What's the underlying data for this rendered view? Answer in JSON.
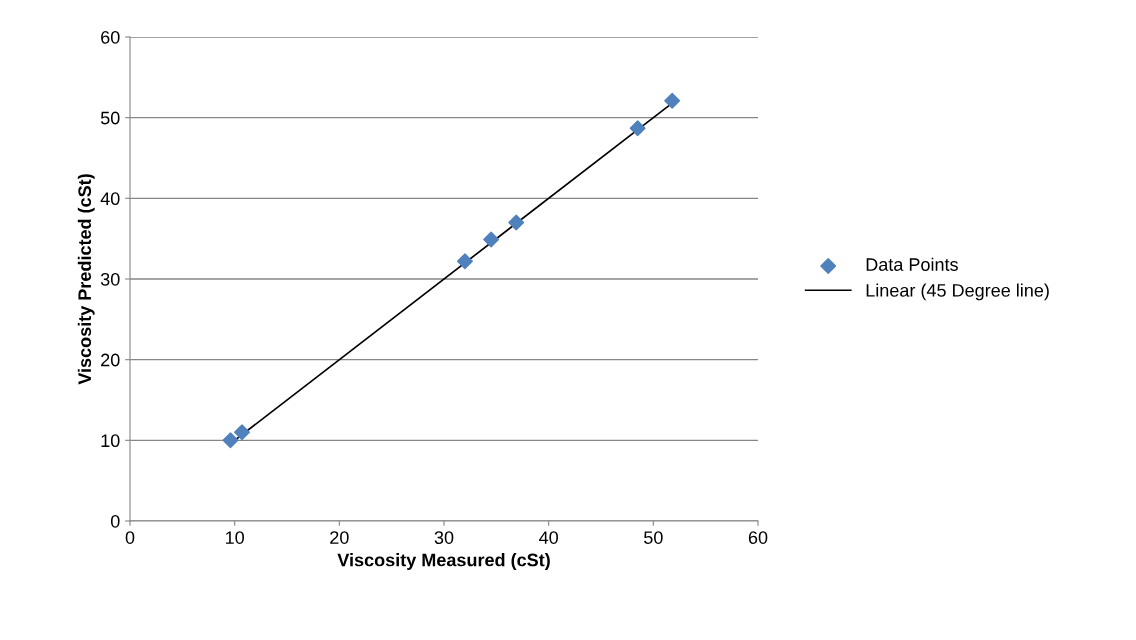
{
  "chart_data": {
    "type": "scatter",
    "xlabel": "Viscosity Measured (cSt)",
    "ylabel": "Viscosity Predicted (cSt)",
    "xlim": [
      0,
      60
    ],
    "ylim": [
      0,
      60
    ],
    "xticks": [
      0,
      10,
      20,
      30,
      40,
      50,
      60
    ],
    "yticks": [
      0,
      10,
      20,
      30,
      40,
      50,
      60
    ],
    "grid": "y",
    "legend": "right",
    "series": [
      {
        "name": "Data Points",
        "color": "#4f81bd",
        "marker": "diamond",
        "x": [
          9.6,
          10.7,
          32.0,
          34.5,
          36.9,
          48.5,
          51.8
        ],
        "values": [
          10.0,
          11.0,
          32.2,
          34.9,
          37.0,
          48.7,
          52.1
        ]
      },
      {
        "name": "Linear (45 Degree line)",
        "type": "line",
        "color": "#000000",
        "marker": "none",
        "line_style": "solid",
        "x": [
          9.6,
          51.8
        ],
        "values": [
          9.6,
          51.8
        ]
      }
    ]
  }
}
